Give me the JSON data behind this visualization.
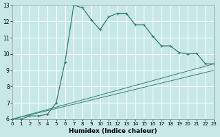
{
  "xlabel": "Humidex (Indice chaleur)",
  "xlim": [
    0,
    23
  ],
  "ylim": [
    6,
    13
  ],
  "xticks": [
    0,
    1,
    2,
    3,
    4,
    5,
    6,
    7,
    8,
    9,
    10,
    11,
    12,
    13,
    14,
    15,
    16,
    17,
    18,
    19,
    20,
    21,
    22,
    23
  ],
  "yticks": [
    6,
    7,
    8,
    9,
    10,
    11,
    12,
    13
  ],
  "bg_color": "#c8e8e8",
  "line_color": "#2e7d6e",
  "grid_color": "#ffffff",
  "line1_x": [
    0,
    1,
    2,
    3,
    4,
    5,
    6,
    7,
    8,
    9,
    10,
    11,
    12,
    13,
    14,
    15,
    16,
    17,
    18,
    19,
    20,
    21,
    22,
    23
  ],
  "line1_y": [
    6.0,
    6.0,
    6.2,
    6.2,
    6.3,
    7.0,
    9.5,
    13.0,
    12.85,
    12.1,
    11.5,
    12.3,
    12.5,
    12.5,
    11.8,
    11.8,
    11.1,
    10.5,
    10.5,
    10.1,
    10.0,
    10.05,
    9.4,
    9.4
  ],
  "line2_x": [
    0,
    23
  ],
  "line2_y": [
    6.0,
    9.4
  ],
  "line3_x": [
    0,
    23
  ],
  "line3_y": [
    6.0,
    9.0
  ],
  "xtick_fontsize": 5.0,
  "ytick_fontsize": 5.5,
  "xlabel_fontsize": 6.5
}
